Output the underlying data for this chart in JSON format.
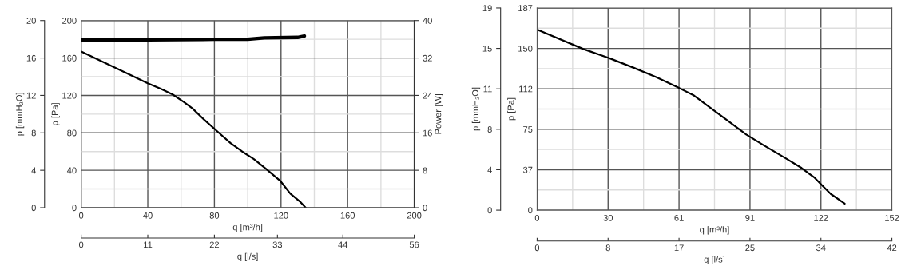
{
  "chart_data": [
    {
      "type": "line",
      "xlabel": "q [m³/h]",
      "ylabel": "p [Pa]",
      "y2label": "Power [W]",
      "y3label": "p [mmH₂O]",
      "x2label": "q [l/s]",
      "grid": true,
      "xlim": [
        0,
        200
      ],
      "xticks": [
        0,
        {
          "value": 20,
          "label": null
        },
        40,
        {
          "value": 60,
          "label": null
        },
        80,
        {
          "value": 100,
          "label": null
        },
        120,
        {
          "value": 140,
          "label": null
        },
        160,
        {
          "value": 180,
          "label": null
        },
        200
      ],
      "ylim": [
        0,
        200
      ],
      "yticks": [
        0,
        {
          "value": 20,
          "label": null
        },
        40,
        {
          "value": 60,
          "label": null
        },
        80,
        {
          "value": 100,
          "label": null
        },
        120,
        {
          "value": 140,
          "label": null
        },
        160,
        {
          "value": 180,
          "label": null
        },
        200
      ],
      "y2lim": [
        0,
        40
      ],
      "y2ticks": [
        0,
        8,
        16,
        24,
        32,
        40
      ],
      "y3lim": [
        0,
        20
      ],
      "y3ticks": [
        0,
        4,
        8,
        12,
        16,
        20
      ],
      "x2lim": [
        0,
        56
      ],
      "x2ticks": [
        0,
        {
          "value": 11.2,
          "label": "11"
        },
        {
          "value": 22.4,
          "label": "22"
        },
        33,
        44,
        56
      ],
      "series": [
        {
          "color": "#000000",
          "x": [
            0,
            40,
            47.9,
            54.9,
            61.6,
            66.9,
            73.9,
            82.7,
            89.7,
            96.7,
            103.7,
            110.7,
            119.4,
            125.6,
            131.7,
            134.8
          ],
          "values": [
            167,
            133,
            127,
            121,
            113,
            106,
            94,
            80,
            69,
            60,
            52,
            42,
            29,
            15,
            6,
            0
          ]
        },
        {
          "color": "#000000",
          "axis": "y2",
          "x": [
            0,
            40,
            80,
            100,
            110,
            130,
            134
          ],
          "values": [
            35.8,
            35.9,
            36.0,
            36.0,
            36.3,
            36.4,
            36.7
          ]
        }
      ]
    },
    {
      "type": "line",
      "xlabel": "q [m³/h]",
      "ylabel": "p [Pa]",
      "y2label": "p [mmH₂O]",
      "x2label": "q [l/s]",
      "grid": true,
      "xlim": [
        0,
        152
      ],
      "xticks": [
        0,
        {
          "value": 15.2,
          "label": null
        },
        {
          "value": 30.4,
          "label": "30"
        },
        {
          "value": 45.6,
          "label": null
        },
        {
          "value": 60.8,
          "label": "61"
        },
        {
          "value": 76,
          "label": null
        },
        {
          "value": 91.2,
          "label": "91"
        },
        {
          "value": 106.4,
          "label": null
        },
        {
          "value": 121.6,
          "label": "122"
        },
        {
          "value": 136.8,
          "label": null
        },
        152
      ],
      "ylim": [
        0,
        187
      ],
      "yticks": [
        0,
        {
          "value": 18.7,
          "label": null
        },
        {
          "value": 37.4,
          "label": "37"
        },
        {
          "value": 56.1,
          "label": null
        },
        {
          "value": 74.8,
          "label": "75"
        },
        {
          "value": 93.5,
          "label": null
        },
        {
          "value": 112.2,
          "label": "112"
        },
        {
          "value": 130.9,
          "label": null
        },
        {
          "value": 149.6,
          "label": "150"
        },
        {
          "value": 168.3,
          "label": null
        },
        187
      ],
      "y2lim": [
        0,
        19
      ],
      "y2ticks": [
        0,
        {
          "value": 3.8,
          "label": "4"
        },
        {
          "value": 7.6,
          "label": "8"
        },
        {
          "value": 11.4,
          "label": "11"
        },
        {
          "value": 15.2,
          "label": "15"
        },
        19
      ],
      "x2lim": [
        0,
        42
      ],
      "x2ticks": [
        0,
        {
          "value": 8.4,
          "label": "8"
        },
        {
          "value": 16.8,
          "label": "17"
        },
        {
          "value": 25.2,
          "label": "25"
        },
        {
          "value": 33.6,
          "label": "34"
        },
        42
      ],
      "series": [
        {
          "color": "#000000",
          "x": [
            0,
            19.8,
            30.4,
            41,
            51,
            60.8,
            67.2,
            73.4,
            80.9,
            89.6,
            97.1,
            106.5,
            113.3,
            118.9,
            122.1,
            125.8,
            131.8
          ],
          "values": [
            167,
            149,
            141,
            132,
            123,
            113,
            106,
            96,
            84,
            70,
            60,
            48,
            39,
            30,
            23,
            15,
            6
          ]
        }
      ]
    }
  ]
}
